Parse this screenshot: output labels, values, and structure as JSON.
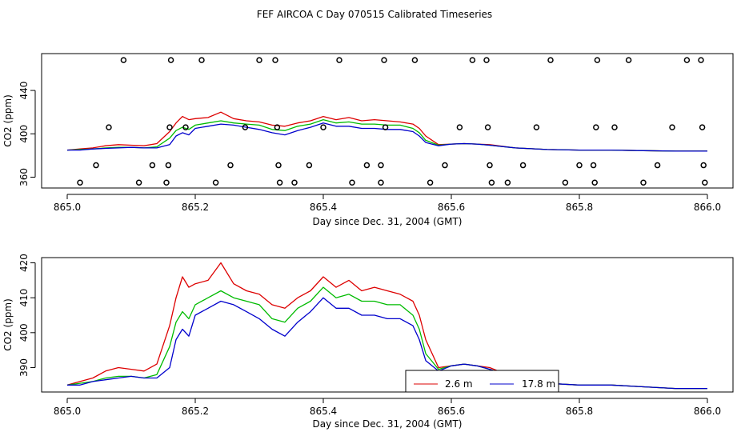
{
  "chart_data": {
    "title": "FEF AIRCOA C  Day 070515  Calibrated Timeseries",
    "panels": [
      {
        "type": "line+scatter",
        "xlabel": "Day since Dec. 31, 2004 (GMT)",
        "ylabel": "CO2 (ppm)",
        "xlim": [
          865.0,
          866.0
        ],
        "ylim": [
          350,
          474
        ],
        "x_ticks": [
          865.0,
          865.2,
          865.4,
          865.6,
          865.8,
          866.0
        ],
        "x_tick_labels": [
          "865.0",
          "865.2",
          "865.4",
          "865.6",
          "865.8",
          "866.0"
        ],
        "y_ticks": [
          360,
          400,
          440
        ],
        "y_tick_labels": [
          "360",
          "400",
          "440"
        ],
        "calibration_points": [
          {
            "x": 865.02,
            "y": 355
          },
          {
            "x": 865.045,
            "y": 371
          },
          {
            "x": 865.065,
            "y": 406
          },
          {
            "x": 865.088,
            "y": 468
          },
          {
            "x": 865.112,
            "y": 355
          },
          {
            "x": 865.133,
            "y": 371
          },
          {
            "x": 865.155,
            "y": 355
          },
          {
            "x": 865.158,
            "y": 371
          },
          {
            "x": 865.16,
            "y": 406
          },
          {
            "x": 865.162,
            "y": 468
          },
          {
            "x": 865.185,
            "y": 406
          },
          {
            "x": 865.21,
            "y": 468
          },
          {
            "x": 865.232,
            "y": 355
          },
          {
            "x": 865.255,
            "y": 371
          },
          {
            "x": 865.278,
            "y": 406
          },
          {
            "x": 865.3,
            "y": 468
          },
          {
            "x": 865.325,
            "y": 468
          },
          {
            "x": 865.328,
            "y": 406
          },
          {
            "x": 865.33,
            "y": 371
          },
          {
            "x": 865.332,
            "y": 355
          },
          {
            "x": 865.355,
            "y": 355
          },
          {
            "x": 865.378,
            "y": 371
          },
          {
            "x": 865.4,
            "y": 406
          },
          {
            "x": 865.425,
            "y": 468
          },
          {
            "x": 865.445,
            "y": 355
          },
          {
            "x": 865.468,
            "y": 371
          },
          {
            "x": 865.49,
            "y": 371
          },
          {
            "x": 865.49,
            "y": 355
          },
          {
            "x": 865.495,
            "y": 468
          },
          {
            "x": 865.497,
            "y": 406
          },
          {
            "x": 865.543,
            "y": 468
          },
          {
            "x": 865.567,
            "y": 355
          },
          {
            "x": 865.59,
            "y": 371
          },
          {
            "x": 865.613,
            "y": 406
          },
          {
            "x": 865.633,
            "y": 468
          },
          {
            "x": 865.655,
            "y": 468
          },
          {
            "x": 865.657,
            "y": 406
          },
          {
            "x": 865.66,
            "y": 371
          },
          {
            "x": 865.663,
            "y": 355
          },
          {
            "x": 865.688,
            "y": 355
          },
          {
            "x": 865.712,
            "y": 371
          },
          {
            "x": 865.733,
            "y": 406
          },
          {
            "x": 865.755,
            "y": 468
          },
          {
            "x": 865.778,
            "y": 355
          },
          {
            "x": 865.8,
            "y": 371
          },
          {
            "x": 865.822,
            "y": 371
          },
          {
            "x": 865.824,
            "y": 355
          },
          {
            "x": 865.826,
            "y": 406
          },
          {
            "x": 865.828,
            "y": 468
          },
          {
            "x": 865.855,
            "y": 406
          },
          {
            "x": 865.877,
            "y": 468
          },
          {
            "x": 865.9,
            "y": 355
          },
          {
            "x": 865.922,
            "y": 371
          },
          {
            "x": 865.945,
            "y": 406
          },
          {
            "x": 865.968,
            "y": 468
          },
          {
            "x": 865.99,
            "y": 468
          },
          {
            "x": 865.992,
            "y": 406
          },
          {
            "x": 865.994,
            "y": 371
          },
          {
            "x": 865.996,
            "y": 355
          }
        ]
      },
      {
        "type": "line",
        "xlabel": "Day since Dec. 31, 2004 (GMT)",
        "ylabel": "CO2 (ppm)",
        "xlim": [
          865.0,
          866.0
        ],
        "ylim": [
          383,
          421.5
        ],
        "x_ticks": [
          865.0,
          865.2,
          865.4,
          865.6,
          865.8,
          866.0
        ],
        "x_tick_labels": [
          "865.0",
          "865.2",
          "865.4",
          "865.6",
          "865.8",
          "866.0"
        ],
        "y_ticks": [
          390,
          400,
          410,
          420
        ],
        "y_tick_labels": [
          "390",
          "400",
          "410",
          "420"
        ],
        "legend": {
          "position": "bottom-center",
          "entries": [
            {
              "label": "2.6 m",
              "color": "#dd0000"
            },
            {
              "label": "17.8 m",
              "color": "#0000cc"
            }
          ]
        }
      }
    ],
    "x": [
      865.0,
      865.02,
      865.04,
      865.06,
      865.08,
      865.1,
      865.12,
      865.14,
      865.16,
      865.17,
      865.18,
      865.19,
      865.2,
      865.22,
      865.24,
      865.26,
      865.28,
      865.3,
      865.32,
      865.34,
      865.36,
      865.38,
      865.4,
      865.42,
      865.44,
      865.46,
      865.48,
      865.5,
      865.52,
      865.54,
      865.55,
      865.56,
      865.58,
      865.6,
      865.62,
      865.64,
      865.66,
      865.7,
      865.75,
      865.8,
      865.85,
      865.9,
      865.95,
      866.0
    ],
    "series": [
      {
        "name": "2.6 m",
        "color": "#dd0000",
        "values": [
          385,
          386,
          387,
          389,
          390,
          389.5,
          389,
          391,
          402,
          410,
          416,
          413,
          414,
          415,
          420,
          414,
          412,
          411,
          408,
          407,
          410,
          412,
          416,
          413,
          415,
          412,
          413,
          412,
          411,
          409,
          405,
          398,
          390,
          390.5,
          391,
          390.5,
          390,
          387,
          385.5,
          385,
          385,
          384.5,
          384,
          384
        ]
      },
      {
        "name": "green",
        "color": "#00bb00",
        "values": [
          385,
          385.5,
          386,
          387,
          387.5,
          387.5,
          387,
          388,
          396,
          403,
          406,
          404,
          408,
          410,
          412,
          410,
          409,
          408,
          404,
          403,
          407,
          409,
          413,
          410,
          411,
          409,
          409,
          408,
          408,
          405,
          401,
          394,
          389.5,
          390.5,
          391,
          390.5,
          389.5,
          387,
          385.5,
          385,
          385,
          384.5,
          384,
          384
        ]
      },
      {
        "name": "17.8 m",
        "color": "#0000cc",
        "values": [
          385,
          385,
          386,
          386.5,
          387,
          387.5,
          387,
          387,
          390,
          398,
          401,
          399,
          405,
          407,
          409,
          408,
          406,
          404,
          401,
          399,
          403,
          406,
          410,
          407,
          407,
          405,
          405,
          404,
          404,
          402,
          398,
          392,
          389,
          390.5,
          391,
          390.5,
          389.5,
          387,
          385.5,
          385,
          385,
          384.5,
          384,
          384
        ]
      }
    ]
  }
}
